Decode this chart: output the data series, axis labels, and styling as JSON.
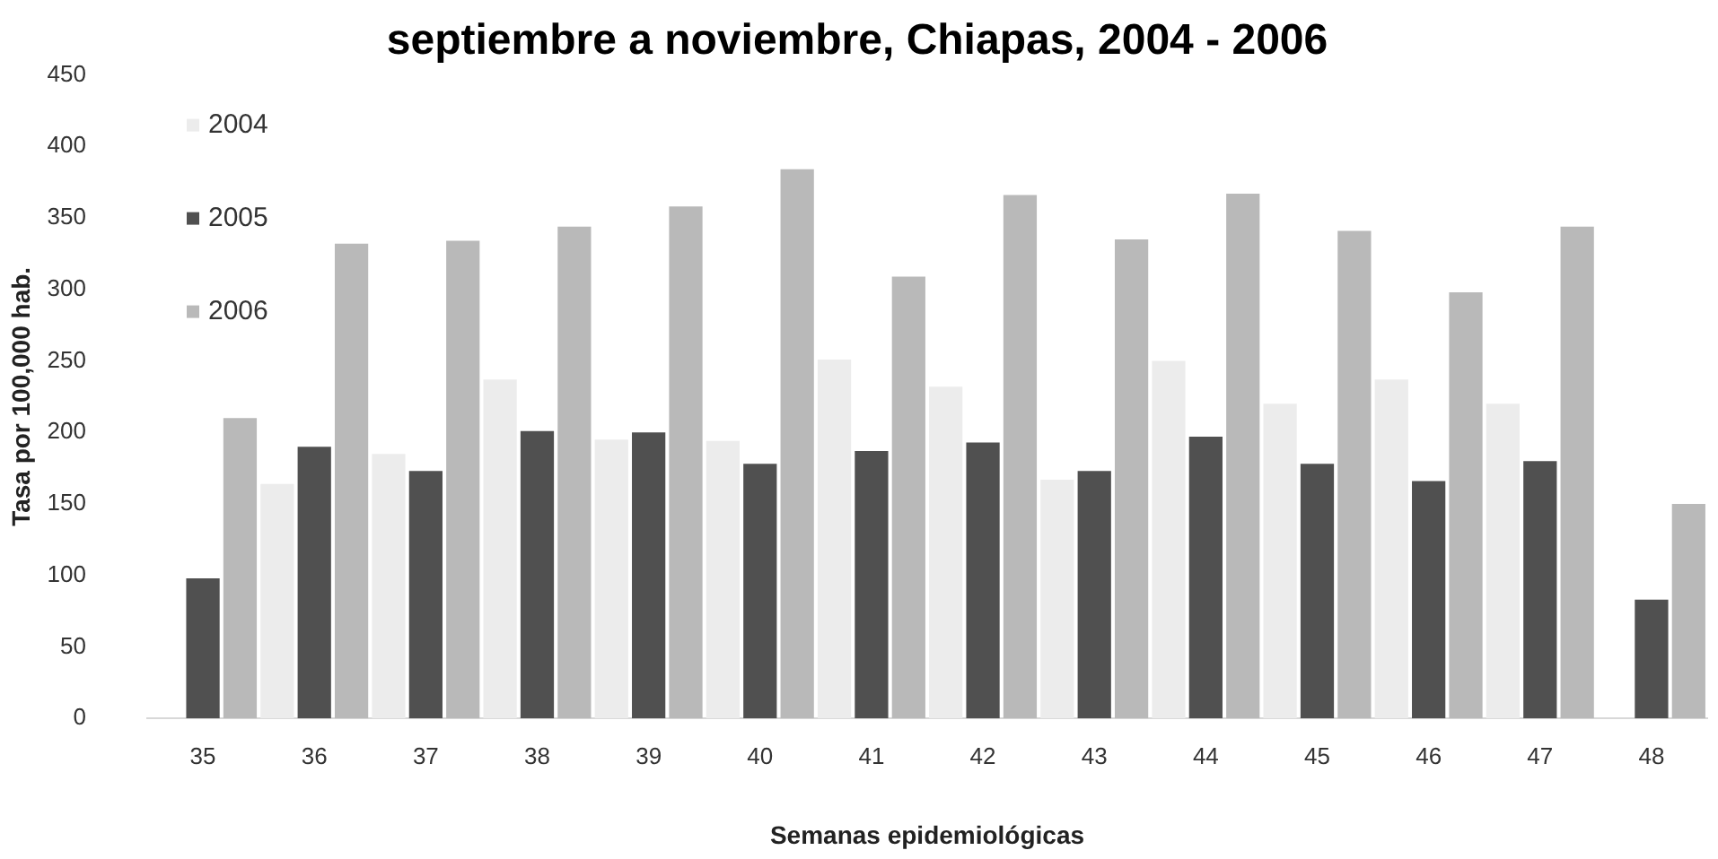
{
  "chart_data": {
    "type": "bar",
    "title": "septiembre a noviembre, Chiapas, 2004 - 2006",
    "xlabel": "Semanas epidemiológicas",
    "ylabel": "Tasa por 100,000 hab.",
    "categories": [
      "35",
      "36",
      "37",
      "38",
      "39",
      "40",
      "41",
      "42",
      "43",
      "44",
      "45",
      "46",
      "47",
      "48"
    ],
    "series": [
      {
        "name": "2004",
        "color": "#ececec",
        "values": [
          null,
          164,
          185,
          237,
          195,
          194,
          251,
          232,
          167,
          250,
          220,
          237,
          220,
          null
        ]
      },
      {
        "name": "2005",
        "color": "#505050",
        "values": [
          98,
          190,
          173,
          201,
          200,
          178,
          187,
          193,
          173,
          197,
          178,
          166,
          180,
          83
        ]
      },
      {
        "name": "2006",
        "color": "#b9b9b9",
        "values": [
          210,
          332,
          334,
          344,
          358,
          384,
          309,
          366,
          335,
          367,
          341,
          298,
          344,
          150
        ]
      }
    ],
    "ylim": [
      0,
      450
    ],
    "yticks": [
      0,
      50,
      100,
      150,
      200,
      250,
      300,
      350,
      400,
      450
    ],
    "legend": "top left"
  }
}
